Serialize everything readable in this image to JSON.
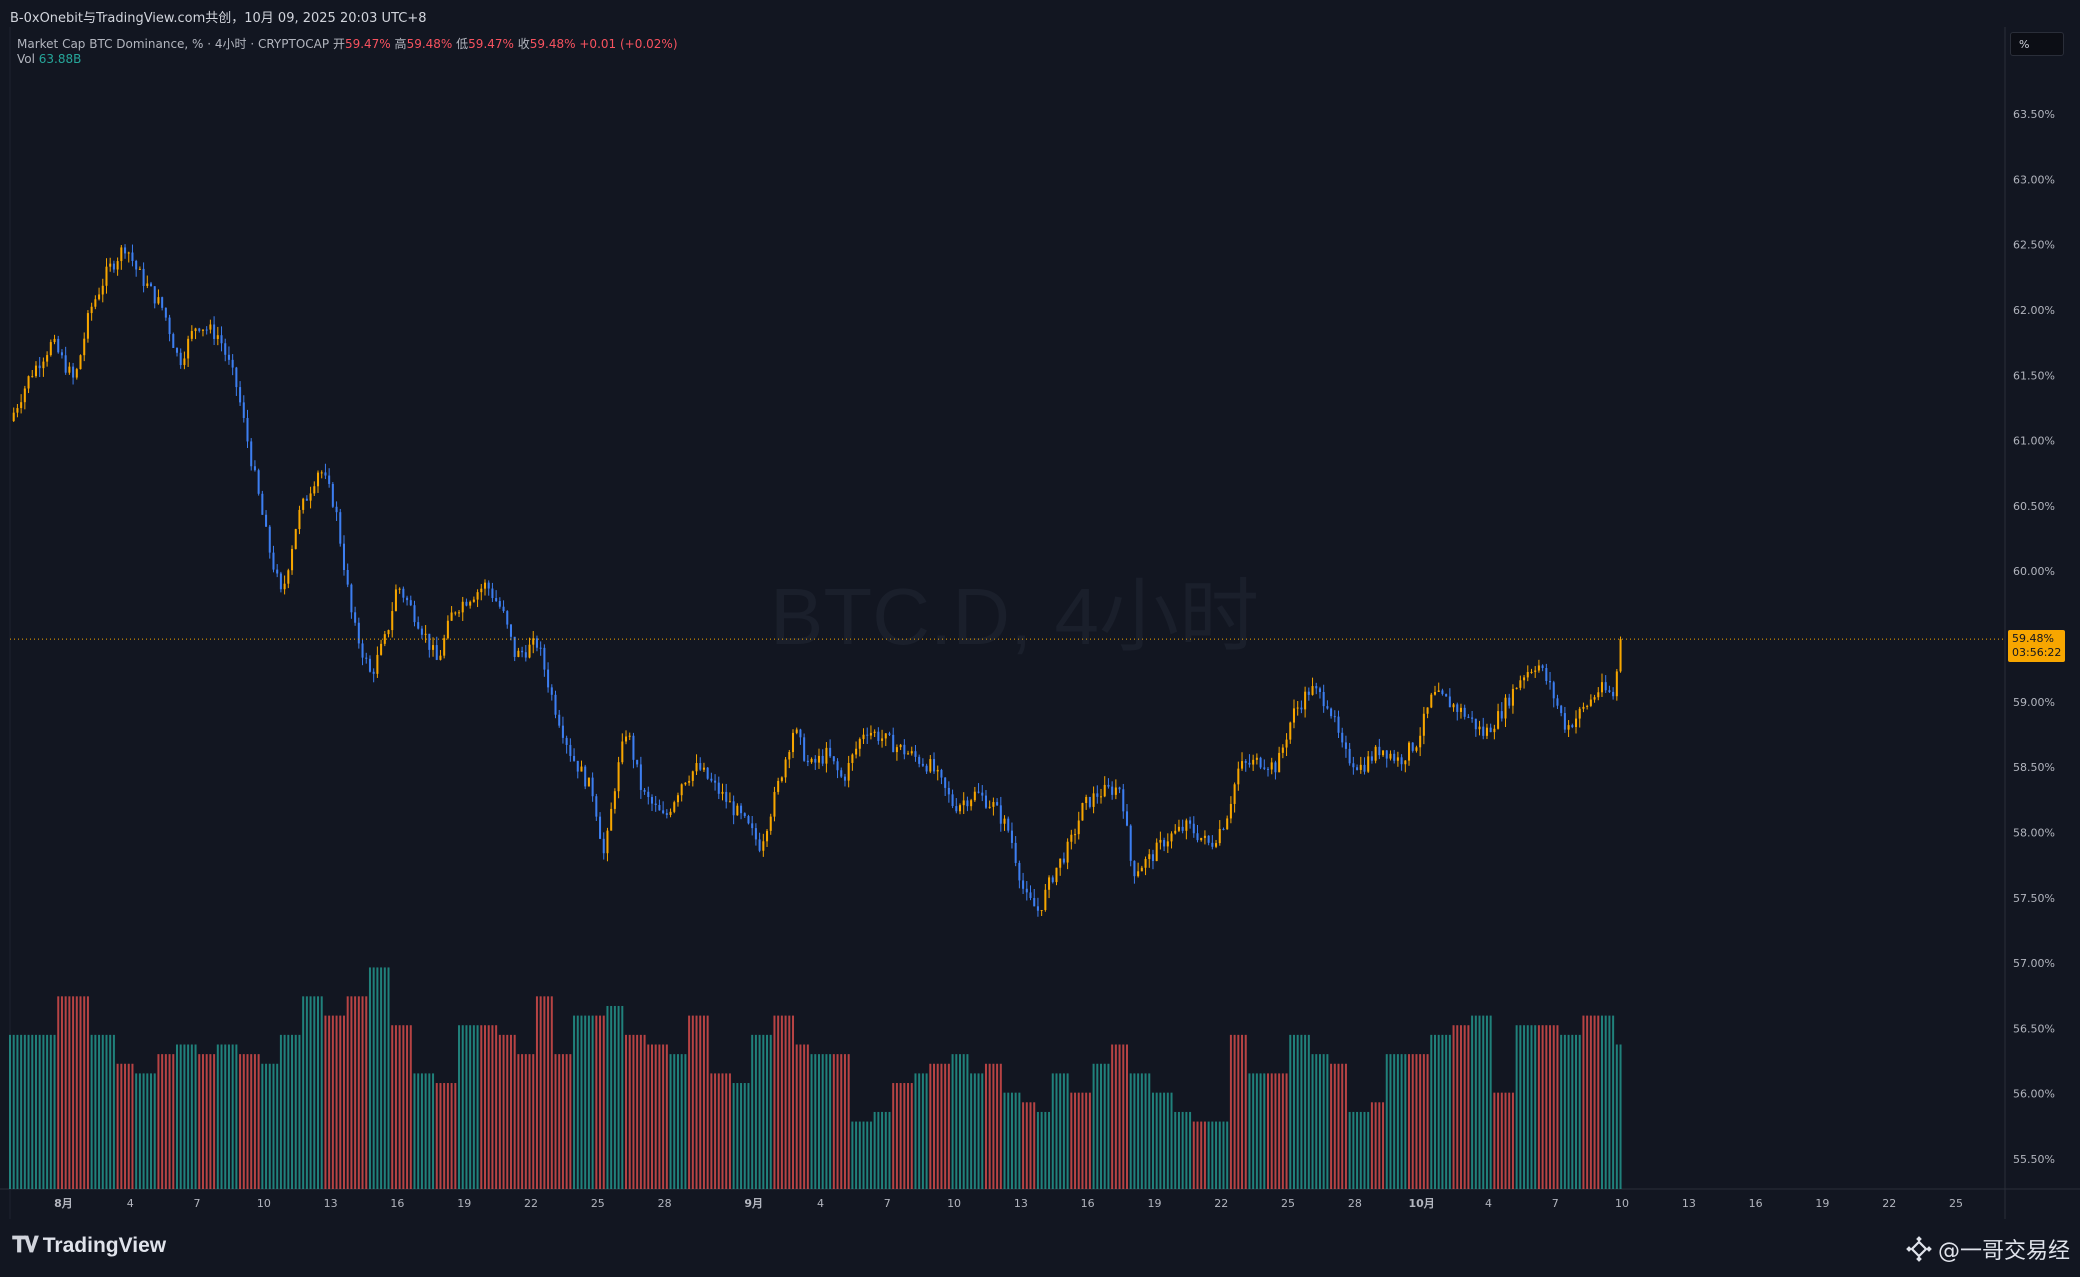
{
  "header": {
    "share_line": "B-0xOnebit与TradingView.com共创，10月 09, 2025 20:03 UTC+8"
  },
  "legend": {
    "title": "Market Cap BTC Dominance, % · 4小时 · CRYPTOCAP",
    "open_label": "开",
    "open_value": "59.47%",
    "high_label": "高",
    "high_value": "59.48%",
    "low_label": "低",
    "low_value": "59.47%",
    "close_label": "收",
    "close_value": "59.48%",
    "change": "+0.01 (+0.02%)",
    "vol_label": "Vol",
    "vol_value": "63.88B"
  },
  "watermark_symbol": "BTC.D, 4小时",
  "unit_button": "%",
  "price_badge": {
    "price": "59.48%",
    "countdown": "03:56:22"
  },
  "footer": {
    "brand": "TradingView",
    "author": "@一哥交易经"
  },
  "colors": {
    "background": "#121621",
    "up_candle": "#f7a600",
    "down_candle": "#3d7ef0",
    "vol_up": "#26a69a",
    "vol_down": "#ef5350",
    "price_line": "#f7a600"
  },
  "chart_data": {
    "type": "candlestick",
    "symbol": "BTC.D",
    "interval": "4小时",
    "y_ticks": [
      "63.50%",
      "63.00%",
      "62.50%",
      "62.00%",
      "61.50%",
      "61.00%",
      "60.50%",
      "60.00%",
      "59.50%",
      "59.00%",
      "58.50%",
      "58.00%",
      "57.50%",
      "57.00%",
      "56.50%",
      "56.00%",
      "55.50%"
    ],
    "ylim": [
      55.3,
      63.8
    ],
    "x_ticks": [
      "8月",
      "4",
      "7",
      "10",
      "13",
      "16",
      "19",
      "22",
      "25",
      "28",
      "9月",
      "4",
      "7",
      "10",
      "13",
      "16",
      "19",
      "22",
      "25",
      "28",
      "10月",
      "4",
      "7",
      "10",
      "13",
      "16",
      "19",
      "22",
      "25"
    ],
    "x_tick_days": [
      0,
      3,
      6,
      9,
      12,
      15,
      18,
      21,
      24,
      27,
      31,
      34,
      37,
      40,
      43,
      46,
      49,
      52,
      55,
      58,
      61,
      64,
      67,
      70,
      73,
      76,
      79,
      82,
      85
    ],
    "xlim_days": [
      -2.4,
      87.2
    ],
    "last_price": 59.48,
    "close_anchors": [
      [
        -2.4,
        61.15
      ],
      [
        -1.5,
        61.5
      ],
      [
        -0.5,
        61.75
      ],
      [
        0.5,
        61.45
      ],
      [
        1.2,
        62.0
      ],
      [
        2.0,
        62.3
      ],
      [
        2.8,
        62.5
      ],
      [
        3.3,
        62.3
      ],
      [
        4.5,
        62.0
      ],
      [
        5.2,
        61.6
      ],
      [
        6.0,
        61.9
      ],
      [
        7.0,
        61.8
      ],
      [
        7.8,
        61.4
      ],
      [
        8.5,
        60.8
      ],
      [
        9.2,
        60.2
      ],
      [
        9.8,
        59.8
      ],
      [
        10.5,
        60.4
      ],
      [
        11.5,
        60.8
      ],
      [
        12.2,
        60.5
      ],
      [
        13.0,
        59.6
      ],
      [
        13.8,
        59.2
      ],
      [
        14.5,
        59.5
      ],
      [
        15.0,
        59.9
      ],
      [
        16.0,
        59.6
      ],
      [
        16.8,
        59.3
      ],
      [
        17.5,
        59.7
      ],
      [
        18.2,
        59.8
      ],
      [
        19.0,
        59.9
      ],
      [
        19.7,
        59.7
      ],
      [
        20.3,
        59.35
      ],
      [
        21.3,
        59.45
      ],
      [
        22.0,
        59.0
      ],
      [
        22.8,
        58.6
      ],
      [
        23.8,
        58.3
      ],
      [
        24.3,
        57.8
      ],
      [
        24.8,
        58.4
      ],
      [
        25.3,
        58.8
      ],
      [
        26.0,
        58.3
      ],
      [
        27.0,
        58.1
      ],
      [
        27.8,
        58.4
      ],
      [
        28.5,
        58.5
      ],
      [
        29.5,
        58.3
      ],
      [
        30.5,
        58.1
      ],
      [
        31.3,
        57.9
      ],
      [
        32.0,
        58.3
      ],
      [
        32.8,
        58.8
      ],
      [
        33.5,
        58.5
      ],
      [
        34.3,
        58.6
      ],
      [
        35.0,
        58.4
      ],
      [
        36.0,
        58.8
      ],
      [
        37.0,
        58.7
      ],
      [
        38.0,
        58.6
      ],
      [
        39.0,
        58.5
      ],
      [
        40.0,
        58.2
      ],
      [
        41.0,
        58.3
      ],
      [
        41.8,
        58.2
      ],
      [
        42.5,
        58.0
      ],
      [
        43.2,
        57.5
      ],
      [
        43.8,
        57.4
      ],
      [
        44.5,
        57.7
      ],
      [
        45.2,
        57.9
      ],
      [
        45.8,
        58.2
      ],
      [
        46.5,
        58.3
      ],
      [
        47.5,
        58.35
      ],
      [
        48.0,
        57.7
      ],
      [
        48.8,
        57.8
      ],
      [
        49.5,
        57.95
      ],
      [
        50.5,
        58.05
      ],
      [
        51.5,
        57.9
      ],
      [
        52.2,
        58.1
      ],
      [
        52.8,
        58.5
      ],
      [
        53.8,
        58.55
      ],
      [
        54.5,
        58.5
      ],
      [
        55.2,
        58.9
      ],
      [
        56.0,
        59.1
      ],
      [
        56.8,
        59.0
      ],
      [
        57.5,
        58.6
      ],
      [
        58.3,
        58.5
      ],
      [
        59.2,
        58.65
      ],
      [
        60.0,
        58.55
      ],
      [
        60.8,
        58.7
      ],
      [
        61.5,
        59.05
      ],
      [
        62.2,
        59.0
      ],
      [
        63.0,
        58.9
      ],
      [
        63.8,
        58.75
      ],
      [
        64.5,
        58.9
      ],
      [
        65.5,
        59.2
      ],
      [
        66.2,
        59.3
      ],
      [
        66.8,
        59.1
      ],
      [
        67.5,
        58.8
      ],
      [
        68.3,
        58.95
      ],
      [
        69.0,
        59.1
      ],
      [
        69.6,
        59.05
      ],
      [
        70.0,
        59.48
      ]
    ],
    "volume_axis_max": 30,
    "volume_steps": [
      [
        -2.4,
        16,
        1
      ],
      [
        -0.3,
        20,
        0
      ],
      [
        1.2,
        16,
        1
      ],
      [
        2.3,
        13,
        0
      ],
      [
        3.2,
        12,
        1
      ],
      [
        4.2,
        14,
        0
      ],
      [
        5.0,
        15,
        1
      ],
      [
        6.0,
        14,
        0
      ],
      [
        6.8,
        15,
        1
      ],
      [
        7.8,
        14,
        0
      ],
      [
        8.8,
        13,
        1
      ],
      [
        9.7,
        16,
        1
      ],
      [
        10.6,
        20,
        1
      ],
      [
        11.6,
        18,
        0
      ],
      [
        12.6,
        20,
        0
      ],
      [
        13.6,
        23,
        1
      ],
      [
        14.6,
        17,
        0
      ],
      [
        15.6,
        12,
        1
      ],
      [
        16.6,
        11,
        0
      ],
      [
        17.6,
        17,
        1
      ],
      [
        18.6,
        17,
        0
      ],
      [
        19.6,
        16,
        0
      ],
      [
        20.4,
        14,
        0
      ],
      [
        21.2,
        20,
        0
      ],
      [
        22.0,
        14,
        0
      ],
      [
        22.8,
        18,
        1
      ],
      [
        23.8,
        18,
        0
      ],
      [
        24.3,
        19,
        1
      ],
      [
        25.2,
        16,
        0
      ],
      [
        26.2,
        15,
        0
      ],
      [
        27.2,
        14,
        1
      ],
      [
        28.0,
        18,
        0
      ],
      [
        29.0,
        12,
        0
      ],
      [
        30.0,
        11,
        1
      ],
      [
        30.8,
        16,
        1
      ],
      [
        31.8,
        18,
        0
      ],
      [
        32.8,
        15,
        0
      ],
      [
        33.6,
        14,
        1
      ],
      [
        34.6,
        14,
        0
      ],
      [
        35.4,
        7,
        1
      ],
      [
        36.4,
        8,
        1
      ],
      [
        37.2,
        11,
        0
      ],
      [
        38.2,
        12,
        1
      ],
      [
        38.8,
        13,
        0
      ],
      [
        39.8,
        14,
        1
      ],
      [
        40.6,
        12,
        1
      ],
      [
        41.4,
        13,
        0
      ],
      [
        42.2,
        10,
        1
      ],
      [
        43.0,
        9,
        0
      ],
      [
        43.6,
        8,
        1
      ],
      [
        44.4,
        12,
        1
      ],
      [
        45.2,
        10,
        0
      ],
      [
        46.2,
        13,
        1
      ],
      [
        47.0,
        15,
        0
      ],
      [
        47.8,
        12,
        1
      ],
      [
        48.8,
        10,
        1
      ],
      [
        49.8,
        8,
        1
      ],
      [
        50.6,
        7,
        0
      ],
      [
        51.4,
        7,
        1
      ],
      [
        52.4,
        16,
        0
      ],
      [
        53.2,
        12,
        1
      ],
      [
        54.0,
        12,
        0
      ],
      [
        55.0,
        16,
        1
      ],
      [
        56.0,
        14,
        1
      ],
      [
        56.8,
        13,
        0
      ],
      [
        57.6,
        8,
        1
      ],
      [
        58.6,
        9,
        0
      ],
      [
        59.4,
        14,
        1
      ],
      [
        60.4,
        14,
        0
      ],
      [
        61.4,
        16,
        1
      ],
      [
        62.4,
        17,
        0
      ],
      [
        63.2,
        18,
        1
      ],
      [
        64.2,
        10,
        0
      ],
      [
        65.2,
        17,
        1
      ],
      [
        66.2,
        17,
        0
      ],
      [
        67.2,
        16,
        1
      ],
      [
        68.2,
        18,
        0
      ],
      [
        69.0,
        18,
        1
      ],
      [
        69.6,
        15,
        1
      ],
      [
        70.0,
        3,
        1
      ]
    ]
  }
}
